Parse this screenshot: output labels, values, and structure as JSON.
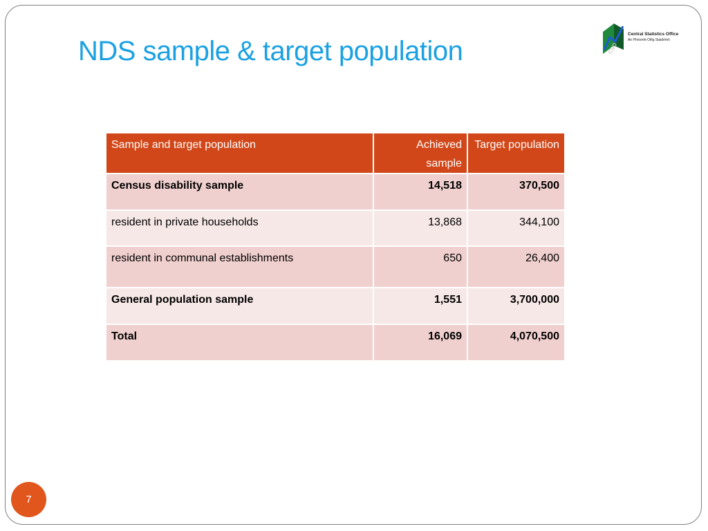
{
  "slide": {
    "title": "NDS sample & target population",
    "page_number": "7"
  },
  "logo": {
    "name": "Central Statistics Office",
    "subtitle": "An Phríomh-Oifig Staidrimh",
    "mark": "CSO",
    "icon": "cso-logo-icon"
  },
  "table": {
    "headers": [
      "Sample and target population",
      "Achieved sample",
      "Target population"
    ],
    "rows": [
      {
        "label": "Census disability sample",
        "achieved": "14,518",
        "target": "370,500",
        "bold": true,
        "indent": false
      },
      {
        "label": "resident in private households",
        "achieved": "13,868",
        "target": "344,100",
        "bold": false,
        "indent": true
      },
      {
        "label": "resident in communal establishments",
        "achieved": "650",
        "target": "26,400",
        "bold": false,
        "indent": true
      },
      {
        "label": "General population sample",
        "achieved": "1,551",
        "target": "3,700,000",
        "bold": true,
        "indent": false
      },
      {
        "label": "Total",
        "achieved": "16,069",
        "target": "4,070,500",
        "bold": true,
        "indent": false
      }
    ]
  },
  "colors": {
    "title": "#1ba1e2",
    "header_bg": "#d24719",
    "row_dark": "#efd0ce",
    "row_light": "#f6e8e7",
    "page_badge": "#e0561c"
  }
}
